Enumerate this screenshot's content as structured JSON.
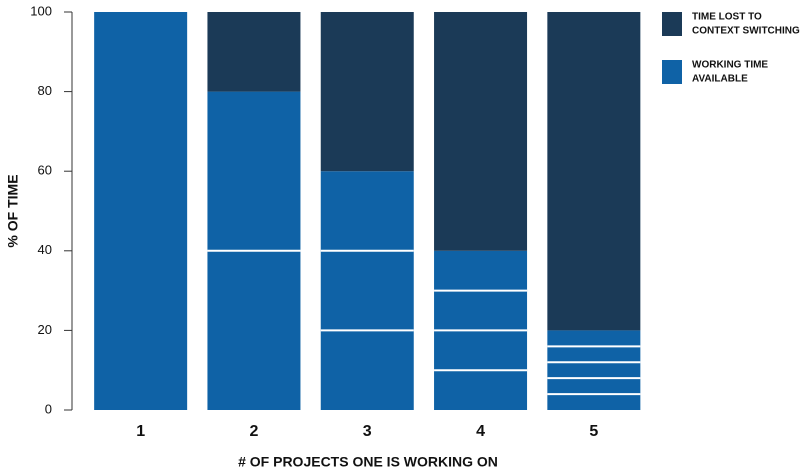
{
  "chart_data": {
    "type": "stacked-bar",
    "x_label": "# OF PROJECTS ONE IS WORKING ON",
    "y_label": "% OF TIME",
    "categories": [
      "1",
      "2",
      "3",
      "4",
      "5"
    ],
    "series": [
      {
        "name": [
          "TIME LOST TO",
          "CONTEXT SWITCHING"
        ],
        "color": "#1b3a57",
        "values": [
          0,
          20,
          40,
          60,
          80
        ]
      },
      {
        "name": [
          "WORKING TIME",
          "AVAILABLE"
        ],
        "color": "#0f62a6",
        "values": [
          100,
          80,
          60,
          40,
          20
        ]
      }
    ],
    "ylim": [
      0,
      100
    ],
    "yticks": [
      0,
      20,
      40,
      60,
      80,
      100
    ]
  }
}
